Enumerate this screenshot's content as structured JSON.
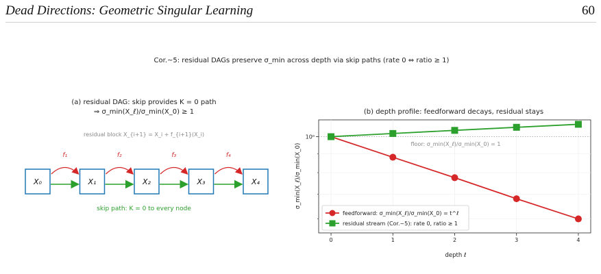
{
  "header": {
    "title": "Dead Directions: Geometric Singular Learning",
    "page_number": "60"
  },
  "figure": {
    "title": "Cor.~5: residual DAGs preserve σ_min across depth via skip paths (rate 0 ⇔ ratio ≥ 1)"
  },
  "panel_a": {
    "title_line1": "(a) residual DAG: skip provides K = 0 path",
    "title_line2": "⇒ σ_min(X_ℓ)/σ_min(X_0) ≥ 1",
    "block_label": "residual block X_{i+1} = X_i + f_{i+1}(X_i)",
    "nodes": [
      "X₀",
      "X₁",
      "X₂",
      "X₃",
      "X₄"
    ],
    "functions": [
      "f₁",
      "f₂",
      "f₃",
      "f₄"
    ],
    "skip_label": "skip path: K = 0 to every node",
    "colors": {
      "residual": "#d62728",
      "skip": "#2ca02c",
      "node_border": "#1f77b4"
    }
  },
  "panel_b": {
    "title": "(b) depth profile: feedforward decays, residual stays",
    "floor_label": "floor: σ_min(X_ℓ)/σ_min(X_0) = 1"
  },
  "chart_data": {
    "type": "line",
    "title": "(b) depth profile: feedforward decays, residual stays",
    "xlabel": "depth ℓ",
    "ylabel": "σ_min(X_ℓ)/σ_min(X_0)",
    "log_y": true,
    "xlim": [
      -0.2,
      4.2
    ],
    "ylim": [
      0.55,
      1.11
    ],
    "x": [
      0,
      1,
      2,
      3,
      4
    ],
    "x_ticks": [
      "0",
      "1",
      "2",
      "3",
      "4"
    ],
    "y_ticks": [
      "10⁰"
    ],
    "grid": true,
    "legend_position": "lower-left",
    "series": [
      {
        "name": "feedforward: σ_min(X_ℓ)/σ_min(X_0) = t^ℓ",
        "values": [
          1.0,
          0.88,
          0.775,
          0.68,
          0.6
        ],
        "color": "#d62728",
        "marker": "circle"
      },
      {
        "name": "residual stream (Cor.~5): rate 0, ratio ≥ 1",
        "values": [
          1.0,
          1.02,
          1.04,
          1.06,
          1.08
        ],
        "color": "#2ca02c",
        "marker": "square"
      }
    ]
  }
}
